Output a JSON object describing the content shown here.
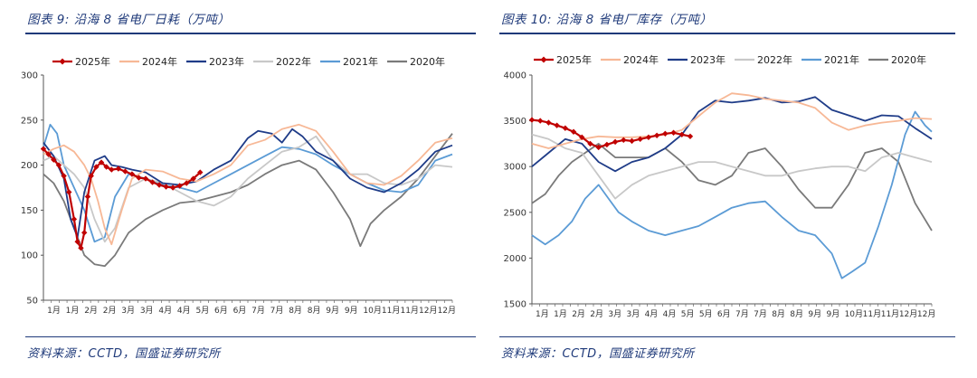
{
  "charts": [
    {
      "title": "图表 9:  沿海 8 省电厂日耗（万吨）",
      "source": "资料来源：CCTD，国盛证券研究所"
    },
    {
      "title": "图表 10:  沿海 8 省电厂库存（万吨）",
      "source": "资料来源：CCTD，国盛证券研究所"
    }
  ],
  "chart_data": [
    {
      "type": "line",
      "title": "图表 9:  沿海 8 省电厂日耗（万吨）",
      "ylim": [
        50,
        300
      ],
      "yticks": [
        "50",
        "100",
        "150",
        "200",
        "250",
        "300"
      ],
      "x_tick_labels": [
        "1月",
        "1月",
        "2月",
        "2月",
        "3月",
        "3月",
        "4月",
        "4月",
        "5月",
        "6月",
        "6月",
        "7月",
        "7月",
        "8月",
        "8月",
        "9月",
        "9月",
        "10月",
        "11月",
        "11月",
        "12月",
        "12月"
      ],
      "x_range_months": [
        0,
        12
      ],
      "legend_position": "top",
      "series": [
        {
          "name": "2025年",
          "color": "#c00000",
          "marker": "diamond",
          "x": [
            0.0,
            0.15,
            0.3,
            0.45,
            0.6,
            0.75,
            0.9,
            1.0,
            1.1,
            1.2,
            1.3,
            1.4,
            1.55,
            1.7,
            1.85,
            2.0,
            2.2,
            2.4,
            2.6,
            2.8,
            3.0,
            3.2,
            3.4,
            3.6,
            3.8,
            4.0,
            4.2,
            4.4,
            4.6
          ],
          "y": [
            218,
            212,
            206,
            200,
            188,
            170,
            140,
            115,
            108,
            125,
            165,
            188,
            198,
            203,
            198,
            195,
            196,
            193,
            190,
            186,
            185,
            181,
            178,
            176,
            175,
            177,
            180,
            185,
            192
          ]
        },
        {
          "name": "2024年",
          "color": "#f7b896",
          "x": [
            0.0,
            0.3,
            0.6,
            0.9,
            1.2,
            1.4,
            1.6,
            1.8,
            2.0,
            2.3,
            2.6,
            3.0,
            3.5,
            4.0,
            4.5,
            5.0,
            5.5,
            6.0,
            6.5,
            7.0,
            7.5,
            8.0,
            8.5,
            9.0,
            9.5,
            10.0,
            10.5,
            11.0,
            11.5,
            12.0
          ],
          "y": [
            212,
            218,
            222,
            215,
            200,
            185,
            160,
            130,
            112,
            150,
            185,
            195,
            193,
            185,
            182,
            190,
            200,
            222,
            228,
            240,
            245,
            238,
            215,
            190,
            180,
            178,
            188,
            205,
            225,
            230
          ]
        },
        {
          "name": "2023年",
          "color": "#1f3c88",
          "x": [
            0.0,
            0.3,
            0.6,
            0.8,
            1.0,
            1.2,
            1.5,
            1.8,
            2.0,
            2.3,
            2.6,
            3.0,
            3.5,
            4.0,
            4.5,
            5.0,
            5.5,
            6.0,
            6.3,
            6.7,
            7.0,
            7.3,
            7.6,
            8.0,
            8.5,
            9.0,
            9.5,
            10.0,
            10.5,
            11.0,
            11.5,
            12.0
          ],
          "y": [
            225,
            210,
            185,
            140,
            120,
            170,
            205,
            210,
            200,
            198,
            195,
            192,
            180,
            178,
            182,
            195,
            205,
            230,
            238,
            235,
            225,
            240,
            232,
            215,
            205,
            185,
            175,
            170,
            180,
            195,
            215,
            222
          ]
        },
        {
          "name": "2022年",
          "color": "#c8c8c8",
          "x": [
            0.0,
            0.3,
            0.6,
            0.9,
            1.2,
            1.5,
            1.8,
            2.1,
            2.5,
            3.0,
            3.5,
            4.0,
            4.5,
            5.0,
            5.5,
            6.0,
            6.5,
            7.0,
            7.5,
            8.0,
            8.5,
            9.0,
            9.5,
            10.0,
            10.5,
            11.0,
            11.5,
            12.0
          ],
          "y": [
            205,
            210,
            200,
            190,
            175,
            140,
            115,
            130,
            175,
            185,
            180,
            170,
            160,
            155,
            165,
            185,
            200,
            215,
            220,
            232,
            205,
            190,
            190,
            180,
            178,
            185,
            200,
            198
          ]
        },
        {
          "name": "2021年",
          "color": "#5b9bd5",
          "x": [
            0.0,
            0.2,
            0.4,
            0.6,
            0.9,
            1.2,
            1.5,
            1.8,
            2.1,
            2.5,
            3.0,
            3.5,
            4.0,
            4.5,
            5.0,
            5.5,
            6.0,
            6.5,
            7.0,
            7.5,
            8.0,
            8.5,
            9.0,
            9.5,
            10.0,
            10.5,
            11.0,
            11.5,
            12.0
          ],
          "y": [
            220,
            245,
            235,
            200,
            175,
            150,
            115,
            120,
            165,
            190,
            185,
            178,
            175,
            170,
            180,
            190,
            200,
            210,
            220,
            218,
            212,
            200,
            190,
            180,
            172,
            170,
            178,
            205,
            212
          ]
        },
        {
          "name": "2020年",
          "color": "#7a7a7a",
          "x": [
            0.0,
            0.3,
            0.6,
            0.9,
            1.2,
            1.5,
            1.8,
            2.1,
            2.5,
            3.0,
            3.5,
            4.0,
            4.5,
            5.0,
            5.5,
            6.0,
            6.5,
            7.0,
            7.5,
            8.0,
            8.5,
            9.0,
            9.3,
            9.6,
            10.0,
            10.5,
            11.0,
            11.5,
            12.0
          ],
          "y": [
            190,
            180,
            160,
            130,
            100,
            90,
            88,
            100,
            125,
            140,
            150,
            158,
            160,
            165,
            170,
            178,
            190,
            200,
            205,
            195,
            170,
            140,
            110,
            135,
            150,
            165,
            185,
            210,
            235
          ]
        }
      ]
    },
    {
      "type": "line",
      "title": "图表 10:  沿海 8 省电厂库存（万吨）",
      "ylim": [
        1500,
        4000
      ],
      "yticks": [
        "1500",
        "2000",
        "2500",
        "3000",
        "3500",
        "4000"
      ],
      "x_tick_labels": [
        "1月",
        "1月",
        "2月",
        "2月",
        "3月",
        "3月",
        "4月",
        "4月",
        "5月",
        "5月",
        "6月",
        "7月",
        "7月",
        "8月",
        "8月",
        "9月",
        "9月",
        "10月",
        "11月",
        "11月",
        "12月",
        "12月"
      ],
      "x_range_months": [
        0,
        12
      ],
      "legend_position": "top",
      "series": [
        {
          "name": "2025年",
          "color": "#c00000",
          "marker": "diamond",
          "x": [
            0.0,
            0.25,
            0.5,
            0.75,
            1.0,
            1.25,
            1.5,
            1.75,
            2.0,
            2.25,
            2.5,
            2.75,
            3.0,
            3.25,
            3.5,
            3.75,
            4.0,
            4.25,
            4.5,
            4.75
          ],
          "y": [
            3510,
            3500,
            3480,
            3450,
            3420,
            3380,
            3320,
            3250,
            3210,
            3240,
            3270,
            3290,
            3280,
            3300,
            3320,
            3340,
            3360,
            3370,
            3350,
            3330
          ]
        },
        {
          "name": "2024年",
          "color": "#f7b896",
          "x": [
            0.0,
            0.5,
            1.0,
            1.5,
            2.0,
            2.5,
            3.0,
            3.5,
            4.0,
            4.5,
            5.0,
            5.5,
            6.0,
            6.5,
            7.0,
            7.5,
            8.0,
            8.5,
            9.0,
            9.5,
            10.0,
            10.5,
            11.0,
            11.5,
            12.0
          ],
          "y": [
            3250,
            3200,
            3250,
            3300,
            3330,
            3320,
            3320,
            3330,
            3350,
            3400,
            3550,
            3700,
            3800,
            3780,
            3740,
            3720,
            3700,
            3640,
            3480,
            3400,
            3450,
            3480,
            3500,
            3530,
            3520
          ]
        },
        {
          "name": "2023年",
          "color": "#1f3c88",
          "x": [
            0.0,
            0.5,
            1.0,
            1.5,
            2.0,
            2.5,
            3.0,
            3.5,
            4.0,
            4.5,
            5.0,
            5.5,
            6.0,
            6.5,
            7.0,
            7.5,
            8.0,
            8.5,
            9.0,
            9.5,
            10.0,
            10.5,
            11.0,
            11.5,
            12.0
          ],
          "y": [
            3000,
            3150,
            3300,
            3250,
            3050,
            2950,
            3050,
            3100,
            3200,
            3350,
            3600,
            3720,
            3700,
            3720,
            3750,
            3700,
            3710,
            3760,
            3620,
            3560,
            3500,
            3560,
            3550,
            3420,
            3300
          ]
        },
        {
          "name": "2022年",
          "color": "#c8c8c8",
          "x": [
            0.0,
            0.5,
            1.0,
            1.5,
            2.0,
            2.5,
            3.0,
            3.5,
            4.0,
            4.5,
            5.0,
            5.5,
            6.0,
            6.5,
            7.0,
            7.5,
            8.0,
            8.5,
            9.0,
            9.5,
            10.0,
            10.5,
            11.0,
            11.5,
            12.0
          ],
          "y": [
            3350,
            3300,
            3200,
            3150,
            2900,
            2650,
            2800,
            2900,
            2950,
            3000,
            3050,
            3050,
            3000,
            2950,
            2900,
            2900,
            2950,
            2980,
            3000,
            3000,
            2950,
            3100,
            3150,
            3100,
            3050
          ]
        },
        {
          "name": "2021年",
          "color": "#5b9bd5",
          "x": [
            0.0,
            0.4,
            0.8,
            1.2,
            1.6,
            2.0,
            2.3,
            2.6,
            3.0,
            3.5,
            4.0,
            4.5,
            5.0,
            5.5,
            6.0,
            6.5,
            7.0,
            7.5,
            8.0,
            8.5,
            9.0,
            9.3,
            9.6,
            10.0,
            10.4,
            10.8,
            11.2,
            11.5,
            11.8,
            12.0
          ],
          "y": [
            2250,
            2150,
            2250,
            2400,
            2650,
            2800,
            2650,
            2500,
            2400,
            2300,
            2250,
            2300,
            2350,
            2450,
            2550,
            2600,
            2620,
            2450,
            2300,
            2250,
            2050,
            1780,
            1850,
            1950,
            2350,
            2800,
            3350,
            3600,
            3450,
            3380
          ]
        },
        {
          "name": "2020年",
          "color": "#7a7a7a",
          "x": [
            0.0,
            0.4,
            0.8,
            1.2,
            1.6,
            2.0,
            2.5,
            3.0,
            3.5,
            4.0,
            4.5,
            5.0,
            5.5,
            6.0,
            6.5,
            7.0,
            7.5,
            8.0,
            8.5,
            9.0,
            9.5,
            10.0,
            10.5,
            11.0,
            11.5,
            12.0
          ],
          "y": [
            2600,
            2700,
            2900,
            3050,
            3150,
            3250,
            3100,
            3100,
            3100,
            3200,
            3050,
            2850,
            2800,
            2900,
            3150,
            3200,
            3000,
            2750,
            2550,
            2550,
            2800,
            3150,
            3200,
            3050,
            2600,
            2300
          ]
        }
      ]
    }
  ]
}
